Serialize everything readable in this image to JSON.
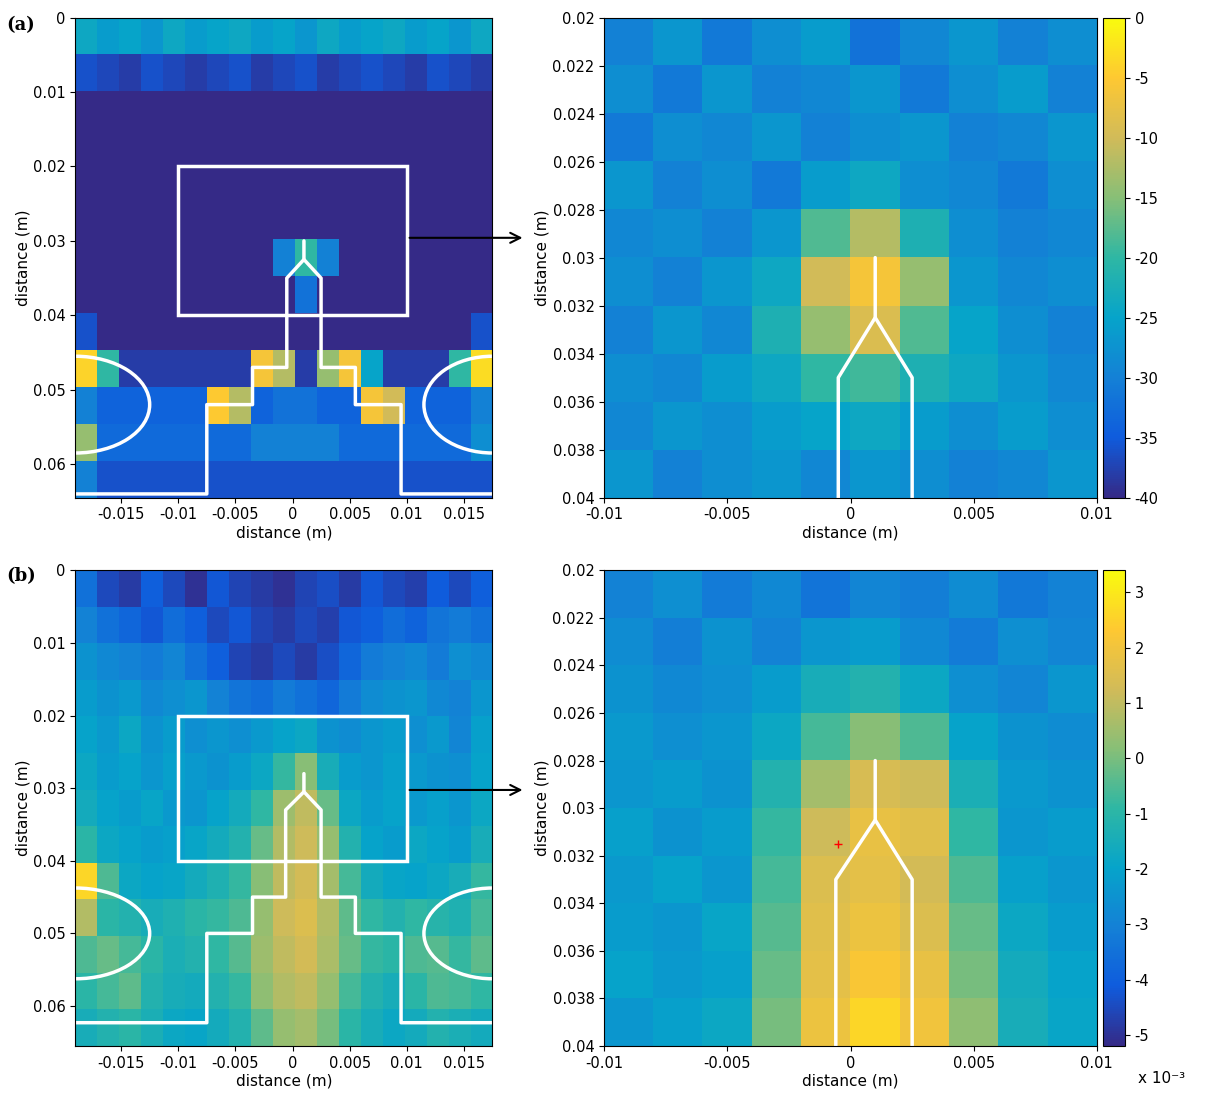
{
  "chart_data": [
    {
      "type": "heatmap",
      "panel_label": "(a)",
      "xlabel": "distance (m)",
      "ylabel": "distance (m)",
      "xlim": [
        -0.019,
        0.0175
      ],
      "ylim": [
        0.0645,
        0
      ],
      "xticks": [
        -0.015,
        -0.01,
        -0.005,
        0,
        0.005,
        0.01,
        0.015
      ],
      "yticks": [
        0,
        0.01,
        0.02,
        0.03,
        0.04,
        0.05,
        0.06
      ],
      "color_range": [
        -40,
        0
      ],
      "cells": [
        [
          -24,
          -26,
          -25,
          -27,
          -24,
          -26,
          -25,
          -24,
          -26,
          -25,
          -27,
          -24,
          -26,
          -25,
          -24,
          -26,
          -25,
          -27,
          -24
        ],
        [
          -36,
          -37,
          -38,
          -36,
          -37,
          -38,
          -37,
          -36,
          -38,
          -37,
          -36,
          -38,
          -37,
          -36,
          -37,
          -38,
          -36,
          -37,
          -38
        ],
        [
          -40,
          -40,
          -40,
          -40,
          -40,
          -40,
          -40,
          -40,
          -40,
          -40,
          -40,
          -40,
          -40,
          -40,
          -40,
          -40,
          -40,
          -40,
          -40
        ],
        [
          -40,
          -40,
          -40,
          -40,
          -40,
          -40,
          -40,
          -40,
          -40,
          -40,
          -40,
          -40,
          -40,
          -40,
          -40,
          -40,
          -40,
          -40,
          -40
        ],
        [
          -40,
          -40,
          -40,
          -40,
          -40,
          -40,
          -40,
          -40,
          -40,
          -40,
          -40,
          -40,
          -40,
          -40,
          -40,
          -40,
          -40,
          -40,
          -40
        ],
        [
          -40,
          -40,
          -40,
          -40,
          -40,
          -40,
          -40,
          -40,
          -40,
          -40,
          -40,
          -40,
          -40,
          -40,
          -40,
          -40,
          -40,
          -40,
          -40
        ],
        [
          -40,
          -40,
          -40,
          -40,
          -40,
          -40,
          -40,
          -40,
          -40,
          -30,
          -20,
          -30,
          -40,
          -40,
          -40,
          -40,
          -40,
          -40,
          -40
        ],
        [
          -40,
          -40,
          -40,
          -40,
          -40,
          -40,
          -40,
          -40,
          -40,
          -40,
          -32,
          -40,
          -40,
          -40,
          -40,
          -40,
          -40,
          -40,
          -40
        ],
        [
          -36,
          -40,
          -40,
          -40,
          -40,
          -40,
          -40,
          -40,
          -40,
          -40,
          -40,
          -40,
          -40,
          -40,
          -40,
          -40,
          -40,
          -40,
          -36
        ],
        [
          -4,
          -20,
          -38,
          -38,
          -38,
          -38,
          -38,
          -38,
          -6,
          -12,
          -38,
          -14,
          -6,
          -25,
          -38,
          -38,
          -38,
          -20,
          -3
        ],
        [
          -30,
          -34,
          -34,
          -34,
          -34,
          -34,
          -5,
          -12,
          -34,
          -32,
          -32,
          -34,
          -34,
          -6,
          -10,
          -34,
          -34,
          -34,
          -30
        ],
        [
          -14,
          -33,
          -33,
          -33,
          -33,
          -33,
          -33,
          -33,
          -30,
          -30,
          -30,
          -30,
          -33,
          -33,
          -33,
          -33,
          -33,
          -33,
          -28
        ],
        [
          -30,
          -36,
          -36,
          -36,
          -36,
          -36,
          -36,
          -36,
          -36,
          -36,
          -36,
          -36,
          -36,
          -36,
          -36,
          -36,
          -36,
          -36,
          -36
        ]
      ],
      "outline": [
        [
          [
            0.001,
            0.03
          ],
          [
            0.001,
            0.0325
          ],
          [
            -0.0005,
            0.035
          ],
          [
            -0.0005,
            0.047
          ],
          [
            -0.0035,
            0.047
          ],
          [
            -0.0035,
            0.052
          ],
          [
            -0.0075,
            0.052
          ],
          [
            -0.0075,
            0.064
          ],
          [
            -0.019,
            0.064
          ]
        ],
        [
          [
            0.001,
            0.0325
          ],
          [
            0.0025,
            0.035
          ],
          [
            0.0025,
            0.047
          ],
          [
            0.0055,
            0.047
          ],
          [
            0.0055,
            0.052
          ],
          [
            0.0095,
            0.052
          ],
          [
            0.0095,
            0.064
          ],
          [
            0.0175,
            0.064
          ]
        ]
      ],
      "ellipses": [
        {
          "center": [
            -0.019,
            0.052
          ],
          "width": 0.013,
          "height": 0.013
        },
        {
          "center": [
            0.0175,
            0.052
          ],
          "width": 0.012,
          "height": 0.013
        }
      ]
    },
    {
      "type": "heatmap",
      "xlabel": "distance (m)",
      "ylabel": "distance (m)",
      "xlim": [
        -0.01,
        0.01
      ],
      "ylim": [
        0.04,
        0.02
      ],
      "xticks": [
        -0.01,
        -0.005,
        0,
        0.005,
        0.01
      ],
      "yticks": [
        0.02,
        0.022,
        0.024,
        0.026,
        0.028,
        0.03,
        0.032,
        0.034,
        0.036,
        0.038,
        0.04
      ],
      "color_range": [
        -40,
        0
      ],
      "colorbar_ticks": [
        0,
        -5,
        -10,
        -15,
        -20,
        -25,
        -30,
        -35,
        -40
      ],
      "cells": [
        [
          -30,
          -27,
          -31,
          -28,
          -26,
          -32,
          -29,
          -27,
          -30,
          -28
        ],
        [
          -28,
          -31,
          -27,
          -30,
          -29,
          -27,
          -31,
          -28,
          -26,
          -30
        ],
        [
          -31,
          -28,
          -29,
          -27,
          -30,
          -28,
          -27,
          -30,
          -29,
          -27
        ],
        [
          -27,
          -30,
          -28,
          -31,
          -26,
          -24,
          -28,
          -29,
          -31,
          -28
        ],
        [
          -29,
          -28,
          -30,
          -27,
          -18,
          -12,
          -22,
          -28,
          -30,
          -29
        ],
        [
          -28,
          -30,
          -27,
          -24,
          -10,
          -6,
          -14,
          -27,
          -29,
          -28
        ],
        [
          -30,
          -27,
          -29,
          -22,
          -14,
          -9,
          -18,
          -25,
          -28,
          -30
        ],
        [
          -28,
          -29,
          -26,
          -24,
          -20,
          -19,
          -22,
          -24,
          -27,
          -29
        ],
        [
          -29,
          -27,
          -28,
          -26,
          -25,
          -24,
          -26,
          -28,
          -26,
          -28
        ],
        [
          -27,
          -30,
          -28,
          -27,
          -29,
          -27,
          -28,
          -30,
          -29,
          -27
        ]
      ],
      "outline": [
        [
          [
            0.001,
            0.03
          ],
          [
            0.001,
            0.0325
          ],
          [
            -0.0005,
            0.035
          ],
          [
            -0.0005,
            0.047
          ]
        ],
        [
          [
            0.001,
            0.0325
          ],
          [
            0.0025,
            0.035
          ],
          [
            0.0025,
            0.047
          ]
        ]
      ]
    },
    {
      "type": "heatmap",
      "panel_label": "(b)",
      "xlabel": "distance (m)",
      "ylabel": "distance (m)",
      "xlim": [
        -0.019,
        0.0175
      ],
      "ylim": [
        0.0655,
        0
      ],
      "xticks": [
        -0.015,
        -0.01,
        -0.005,
        0,
        0.005,
        0.01,
        0.015
      ],
      "yticks": [
        0,
        0.01,
        0.02,
        0.03,
        0.04,
        0.05,
        0.06
      ],
      "color_range": [
        -5.2,
        3.4
      ],
      "cells": [
        [
          -3.5,
          -4.5,
          -4.8,
          -4,
          -4.5,
          -5,
          -4.2,
          -4.6,
          -4.8,
          -5,
          -4.6,
          -4.4,
          -4.8,
          -4.2,
          -4.5,
          -4.7,
          -4.1,
          -4.5,
          -4
        ],
        [
          -3,
          -3.5,
          -3.8,
          -4.2,
          -3.6,
          -4,
          -4.5,
          -4.2,
          -4.6,
          -4.8,
          -4.5,
          -4.7,
          -4.2,
          -4,
          -3.6,
          -3.9,
          -3.4,
          -3.2,
          -3.5
        ],
        [
          -2.5,
          -2.8,
          -3,
          -3.2,
          -2.9,
          -3.5,
          -4,
          -4.6,
          -4.8,
          -4.5,
          -4.8,
          -4.4,
          -3.8,
          -3.2,
          -3,
          -2.8,
          -3.2,
          -2.6,
          -2.8
        ],
        [
          -2.2,
          -2.5,
          -2.3,
          -2.8,
          -2.6,
          -2.4,
          -3,
          -3.4,
          -3.6,
          -3.2,
          -3.5,
          -3.8,
          -3.2,
          -2.7,
          -2.5,
          -2.4,
          -2.8,
          -3,
          -2.4
        ],
        [
          -2,
          -2.3,
          -1.8,
          -2.5,
          -2.2,
          -2.6,
          -2.4,
          -2.6,
          -2.3,
          -2,
          -1.8,
          -2.5,
          -2.7,
          -2.4,
          -2.2,
          -2.6,
          -2.3,
          -2.9,
          -2.1
        ],
        [
          -1.8,
          -2.2,
          -2,
          -2.4,
          -2.1,
          -2.3,
          -2.5,
          -2.2,
          -1.8,
          -0.8,
          0.2,
          -1.5,
          -2.2,
          -2.4,
          -2.1,
          -2.3,
          -2.5,
          -2.6,
          -2
        ],
        [
          -1.6,
          -2,
          -2.2,
          -1.9,
          -2.3,
          -2.4,
          -2,
          -1.6,
          -0.9,
          0.5,
          1,
          -0.2,
          -1.8,
          -2.2,
          -2,
          -2.3,
          -2.1,
          -2.4,
          -1.8
        ],
        [
          -1,
          -1.8,
          -2,
          -2.2,
          -2.1,
          -1.9,
          -1.6,
          -1.2,
          -0.2,
          0.8,
          1.2,
          0.4,
          -1.2,
          -2,
          -2.2,
          -1.8,
          -2,
          -2.2,
          -1.5
        ],
        [
          2.6,
          -0.5,
          -1.8,
          -2,
          -1.9,
          -1.6,
          -1.3,
          -0.8,
          0.2,
          1,
          1.3,
          0.6,
          -0.6,
          -1.6,
          -1.9,
          -2,
          -1.8,
          -1.5,
          -0.8
        ],
        [
          0.8,
          -1,
          -1.2,
          -1.5,
          -1.3,
          -1,
          -0.8,
          -0.5,
          0.4,
          1.2,
          1.5,
          0.8,
          -0.3,
          -0.9,
          -1.2,
          -0.9,
          -1.1,
          -1.3,
          -0.6
        ],
        [
          -0.5,
          -0.2,
          -0.6,
          -1,
          -1.4,
          -1.2,
          -0.9,
          -0.4,
          0.5,
          1,
          1.3,
          0.7,
          -0.2,
          -0.8,
          -1,
          -0.5,
          -0.4,
          -0.8,
          -0.3
        ],
        [
          -1,
          -0.6,
          -0.3,
          -1.2,
          -1.5,
          -1.6,
          -1.2,
          -0.8,
          0.3,
          0.8,
          1,
          0.4,
          -0.6,
          -1.2,
          -1.5,
          -1,
          -0.5,
          -0.6,
          -0.9
        ],
        [
          -1.5,
          -1.2,
          -1,
          -1.4,
          -1.8,
          -1.9,
          -1.6,
          -1.2,
          -0.3,
          0.4,
          0.6,
          0,
          -1,
          -1.5,
          -1.8,
          -1.6,
          -1.2,
          -1.4,
          -1.6
        ]
      ],
      "outline": [
        [
          [
            0.001,
            0.028
          ],
          [
            0.001,
            0.0305
          ],
          [
            -0.0006,
            0.033
          ],
          [
            -0.0006,
            0.045
          ],
          [
            -0.0035,
            0.045
          ],
          [
            -0.0035,
            0.05
          ],
          [
            -0.0075,
            0.05
          ],
          [
            -0.0075,
            0.0623
          ],
          [
            -0.019,
            0.0623
          ]
        ],
        [
          [
            0.001,
            0.0305
          ],
          [
            0.0025,
            0.033
          ],
          [
            0.0025,
            0.045
          ],
          [
            0.0055,
            0.045
          ],
          [
            0.0055,
            0.05
          ],
          [
            0.0095,
            0.05
          ],
          [
            0.0095,
            0.0623
          ],
          [
            0.0175,
            0.0623
          ]
        ]
      ],
      "ellipses": [
        {
          "center": [
            -0.019,
            0.05
          ],
          "width": 0.013,
          "height": 0.0125
        },
        {
          "center": [
            0.0175,
            0.05
          ],
          "width": 0.012,
          "height": 0.0125
        }
      ]
    },
    {
      "type": "heatmap",
      "xlabel": "distance (m)",
      "ylabel": "distance (m)",
      "xlim": [
        -0.01,
        0.01
      ],
      "ylim": [
        0.04,
        0.02
      ],
      "xticks": [
        -0.01,
        -0.005,
        0,
        0.005,
        0.01
      ],
      "yticks": [
        0.02,
        0.022,
        0.024,
        0.026,
        0.028,
        0.03,
        0.032,
        0.034,
        0.036,
        0.038,
        0.04
      ],
      "color_range": [
        -5.2,
        3.4
      ],
      "colorbar_ticks": [
        3,
        2,
        1,
        0,
        -1,
        -2,
        -3,
        -4,
        -5
      ],
      "colorbar_label": "x 10⁻³",
      "cells": [
        [
          -3,
          -2.6,
          -3.2,
          -2.8,
          -3.4,
          -2.9,
          -3.1,
          -2.7,
          -3.3,
          -3
        ],
        [
          -2.7,
          -3.1,
          -2.5,
          -3,
          -2.4,
          -2.2,
          -2.8,
          -3.2,
          -2.6,
          -2.9
        ],
        [
          -2.5,
          -2.8,
          -2.6,
          -2.2,
          -1.5,
          -1.2,
          -1.8,
          -2.6,
          -2.9,
          -2.4
        ],
        [
          -2.3,
          -2.6,
          -2.4,
          -1.8,
          -0.6,
          0.2,
          -0.5,
          -2,
          -2.5,
          -2.7
        ],
        [
          -2.4,
          -2.2,
          -2.5,
          -1.2,
          0.6,
          1.4,
          1.2,
          -1.4,
          -2.3,
          -2.5
        ],
        [
          -2.1,
          -2.5,
          -2.2,
          -0.8,
          1.2,
          1.8,
          1.6,
          -0.9,
          -2.4,
          -2.2
        ],
        [
          -2.3,
          -2,
          -2.4,
          -0.6,
          1.5,
          1.7,
          1.3,
          -0.5,
          -2.1,
          -2.4
        ],
        [
          -2.2,
          -2.4,
          -1.9,
          -0.4,
          1.6,
          1.9,
          1.5,
          -0.2,
          -1.8,
          -2.2
        ],
        [
          -2,
          -2.3,
          -2.1,
          -0.2,
          1.7,
          2.2,
          1.8,
          0,
          -1.6,
          -2
        ],
        [
          -2.4,
          -2.1,
          -1.8,
          0,
          1.9,
          2.6,
          2,
          0.3,
          -1.5,
          -1.9
        ]
      ],
      "outline": [
        [
          [
            0.001,
            0.028
          ],
          [
            0.001,
            0.0305
          ],
          [
            -0.0006,
            0.033
          ],
          [
            -0.0006,
            0.045
          ]
        ],
        [
          [
            0.001,
            0.0305
          ],
          [
            0.0025,
            0.033
          ],
          [
            0.0025,
            0.045
          ]
        ]
      ],
      "markers": [
        {
          "x": -0.0005,
          "y": 0.0315,
          "color": "#ff0000",
          "marker": "+"
        }
      ]
    }
  ]
}
